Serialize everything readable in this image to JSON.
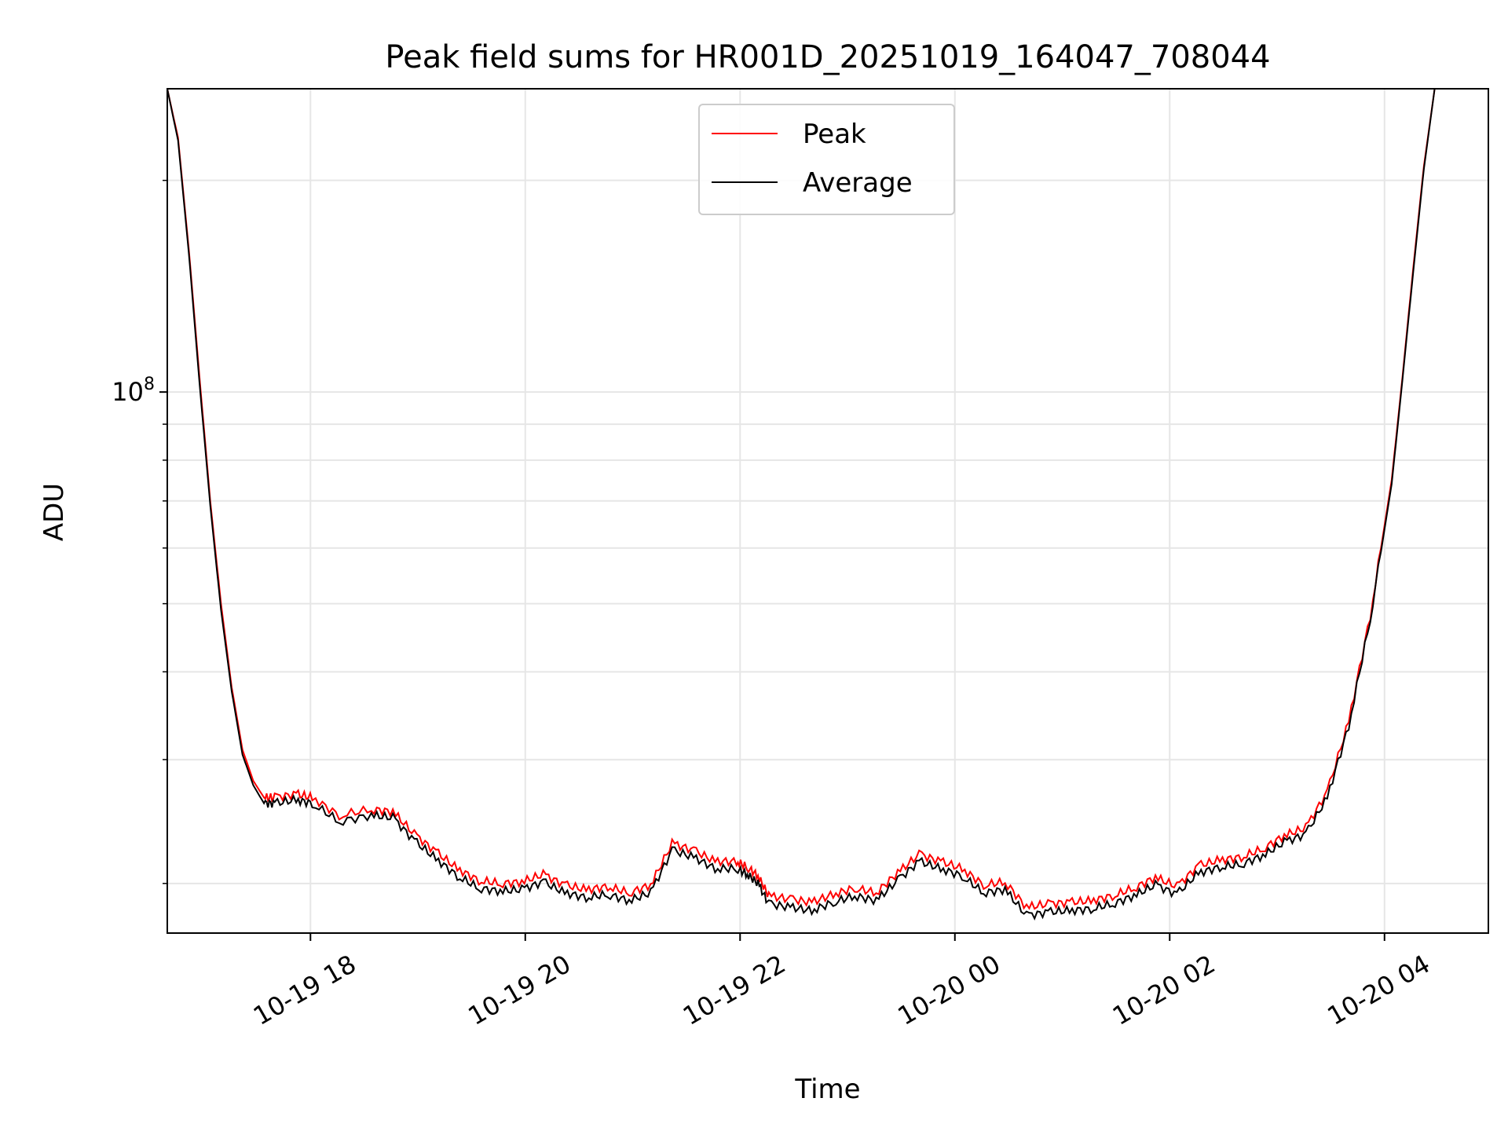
{
  "chart_data": {
    "type": "line",
    "title": "Peak field sums for HR001D_20251019_164047_708044",
    "xlabel": "Time",
    "ylabel": "ADU",
    "y_scale": "log",
    "x_unit": "hours since 10-19 16:40",
    "xlim": [
      0.0,
      12.3
    ],
    "ylim": [
      17000000,
      270000000
    ],
    "grid": true,
    "legend_position": "upper center",
    "x_ticks": [
      {
        "value": 1.333,
        "label": "10-19 18"
      },
      {
        "value": 3.333,
        "label": "10-19 20"
      },
      {
        "value": 5.333,
        "label": "10-19 22"
      },
      {
        "value": 7.333,
        "label": "10-20 00"
      },
      {
        "value": 9.333,
        "label": "10-20 02"
      },
      {
        "value": 11.333,
        "label": "10-20 04"
      }
    ],
    "y_major_ticks": [
      {
        "value": 100000000,
        "base": "10",
        "exponent": "8"
      }
    ],
    "y_minor_ticks": [
      20000000,
      30000000,
      40000000,
      50000000,
      60000000,
      70000000,
      80000000,
      90000000,
      200000000
    ],
    "x": [
      0.0,
      0.1,
      0.2,
      0.3,
      0.4,
      0.5,
      0.6,
      0.7,
      0.8,
      0.9,
      1.0,
      1.2,
      1.35,
      1.6,
      1.9,
      2.1,
      2.3,
      2.5,
      2.7,
      2.9,
      3.1,
      3.3,
      3.5,
      3.7,
      3.9,
      4.1,
      4.3,
      4.5,
      4.7,
      4.9,
      5.1,
      5.3,
      5.4,
      5.5,
      5.6,
      5.8,
      6.0,
      6.2,
      6.4,
      6.6,
      6.8,
      7.0,
      7.2,
      7.4,
      7.6,
      7.8,
      8.0,
      8.2,
      8.4,
      8.6,
      8.8,
      9.0,
      9.2,
      9.4,
      9.6,
      9.8,
      10.0,
      10.2,
      10.4,
      10.6,
      10.8,
      11.0,
      11.2,
      11.4,
      11.5,
      11.6,
      11.7,
      11.8,
      11.9,
      12.0,
      12.1,
      12.3
    ],
    "series": [
      {
        "name": "Peak",
        "color": "#ff0000",
        "values": [
          270000000,
          230000000,
          160000000,
          105000000,
          70000000,
          50000000,
          38000000,
          31000000,
          28000000,
          26500000,
          26500000,
          26800000,
          26500000,
          25000000,
          25500000,
          25300000,
          23500000,
          22200000,
          21000000,
          20200000,
          20000000,
          20100000,
          20600000,
          19900000,
          19600000,
          19800000,
          19400000,
          19900000,
          22800000,
          22300000,
          21500000,
          21500000,
          21100000,
          20500000,
          19200000,
          19000000,
          18800000,
          19300000,
          19700000,
          19400000,
          20700000,
          22000000,
          21500000,
          21000000,
          19900000,
          20100000,
          18500000,
          18700000,
          18800000,
          18900000,
          19200000,
          19700000,
          20400000,
          19800000,
          21200000,
          21600000,
          21800000,
          22400000,
          23400000,
          24000000,
          27000000,
          34000000,
          48000000,
          75000000,
          105000000,
          150000000,
          210000000,
          270000000,
          270000000,
          270000000,
          270000000,
          270000000
        ]
      },
      {
        "name": "Average",
        "color": "#000000",
        "values": [
          270000000,
          228000000,
          158000000,
          103000000,
          69000000,
          49000000,
          37500000,
          30500000,
          27600000,
          26000000,
          26000000,
          26300000,
          26000000,
          24500000,
          25000000,
          24800000,
          23000000,
          21700000,
          20500000,
          19700000,
          19500000,
          19600000,
          20100000,
          19400000,
          19100000,
          19300000,
          18900000,
          19400000,
          22300000,
          21800000,
          21000000,
          21000000,
          20600000,
          20000000,
          18700000,
          18500000,
          18300000,
          18800000,
          19200000,
          18900000,
          20200000,
          21500000,
          21000000,
          20500000,
          19400000,
          19600000,
          18000000,
          18200000,
          18300000,
          18400000,
          18700000,
          19200000,
          19900000,
          19300000,
          20700000,
          21100000,
          21300000,
          21900000,
          22900000,
          23500000,
          26500000,
          33500000,
          47500000,
          74000000,
          104000000,
          148000000,
          208000000,
          270000000,
          270000000,
          270000000,
          270000000,
          270000000
        ]
      }
    ]
  }
}
